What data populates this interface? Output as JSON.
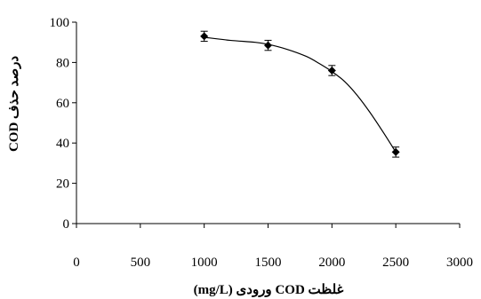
{
  "chart_data": {
    "type": "scatter",
    "xlabel": "غلظت COD ورودی (mg/L)",
    "ylabel": "درصد حذف COD",
    "xlim": [
      0,
      3000
    ],
    "ylim": [
      0,
      100
    ],
    "x_ticks": [
      "0",
      "500",
      "1000",
      "1500",
      "2000",
      "2500",
      "3000"
    ],
    "y_ticks": [
      "0",
      "20",
      "40",
      "60",
      "80",
      "100"
    ],
    "grid": false,
    "legend": "none",
    "series": [
      {
        "marker": "diamond",
        "color": "#000000",
        "x": [
          1000,
          1500,
          2000,
          2500
        ],
        "y": [
          93,
          88.5,
          76,
          35.5
        ],
        "error": [
          2.5,
          2.5,
          2.5,
          2.5
        ],
        "fit_line": {
          "x": [
            1000,
            1200,
            1400,
            1500,
            1650,
            1800,
            1900,
            2000,
            2100,
            2200,
            2300,
            2400,
            2500
          ],
          "y": [
            92.5,
            91,
            90,
            89,
            86.5,
            83,
            79.5,
            75.5,
            70.5,
            63.5,
            55,
            45.5,
            35.5
          ]
        }
      }
    ]
  }
}
